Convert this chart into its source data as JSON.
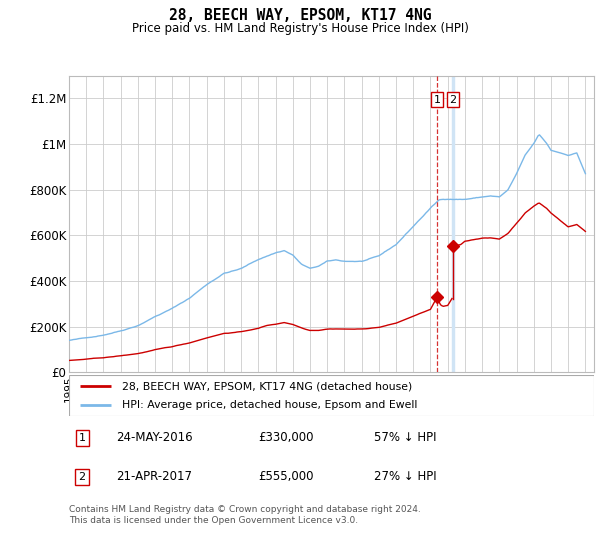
{
  "title": "28, BEECH WAY, EPSOM, KT17 4NG",
  "subtitle": "Price paid vs. HM Land Registry's House Price Index (HPI)",
  "ylabel_ticks": [
    "£0",
    "£200K",
    "£400K",
    "£600K",
    "£800K",
    "£1M",
    "£1.2M"
  ],
  "ytick_values": [
    0,
    200000,
    400000,
    600000,
    800000,
    1000000,
    1200000
  ],
  "ylim": [
    0,
    1300000
  ],
  "xlim_start": 1995.0,
  "xlim_end": 2025.5,
  "hpi_color": "#7bb8e8",
  "price_color": "#cc0000",
  "dashed_color": "#cc0000",
  "shade_color": "#d0e4f5",
  "background_color": "#ffffff",
  "grid_color": "#cccccc",
  "transaction1_date": "24-MAY-2016",
  "transaction1_price": "£330,000",
  "transaction1_pct": "57% ↓ HPI",
  "transaction1_x": 2016.38,
  "transaction1_y": 330000,
  "transaction2_date": "21-APR-2017",
  "transaction2_price": "£555,000",
  "transaction2_pct": "27% ↓ HPI",
  "transaction2_x": 2017.3,
  "transaction2_y": 555000,
  "legend_label_red": "28, BEECH WAY, EPSOM, KT17 4NG (detached house)",
  "legend_label_blue": "HPI: Average price, detached house, Epsom and Ewell",
  "footer": "Contains HM Land Registry data © Crown copyright and database right 2024.\nThis data is licensed under the Open Government Licence v3.0."
}
